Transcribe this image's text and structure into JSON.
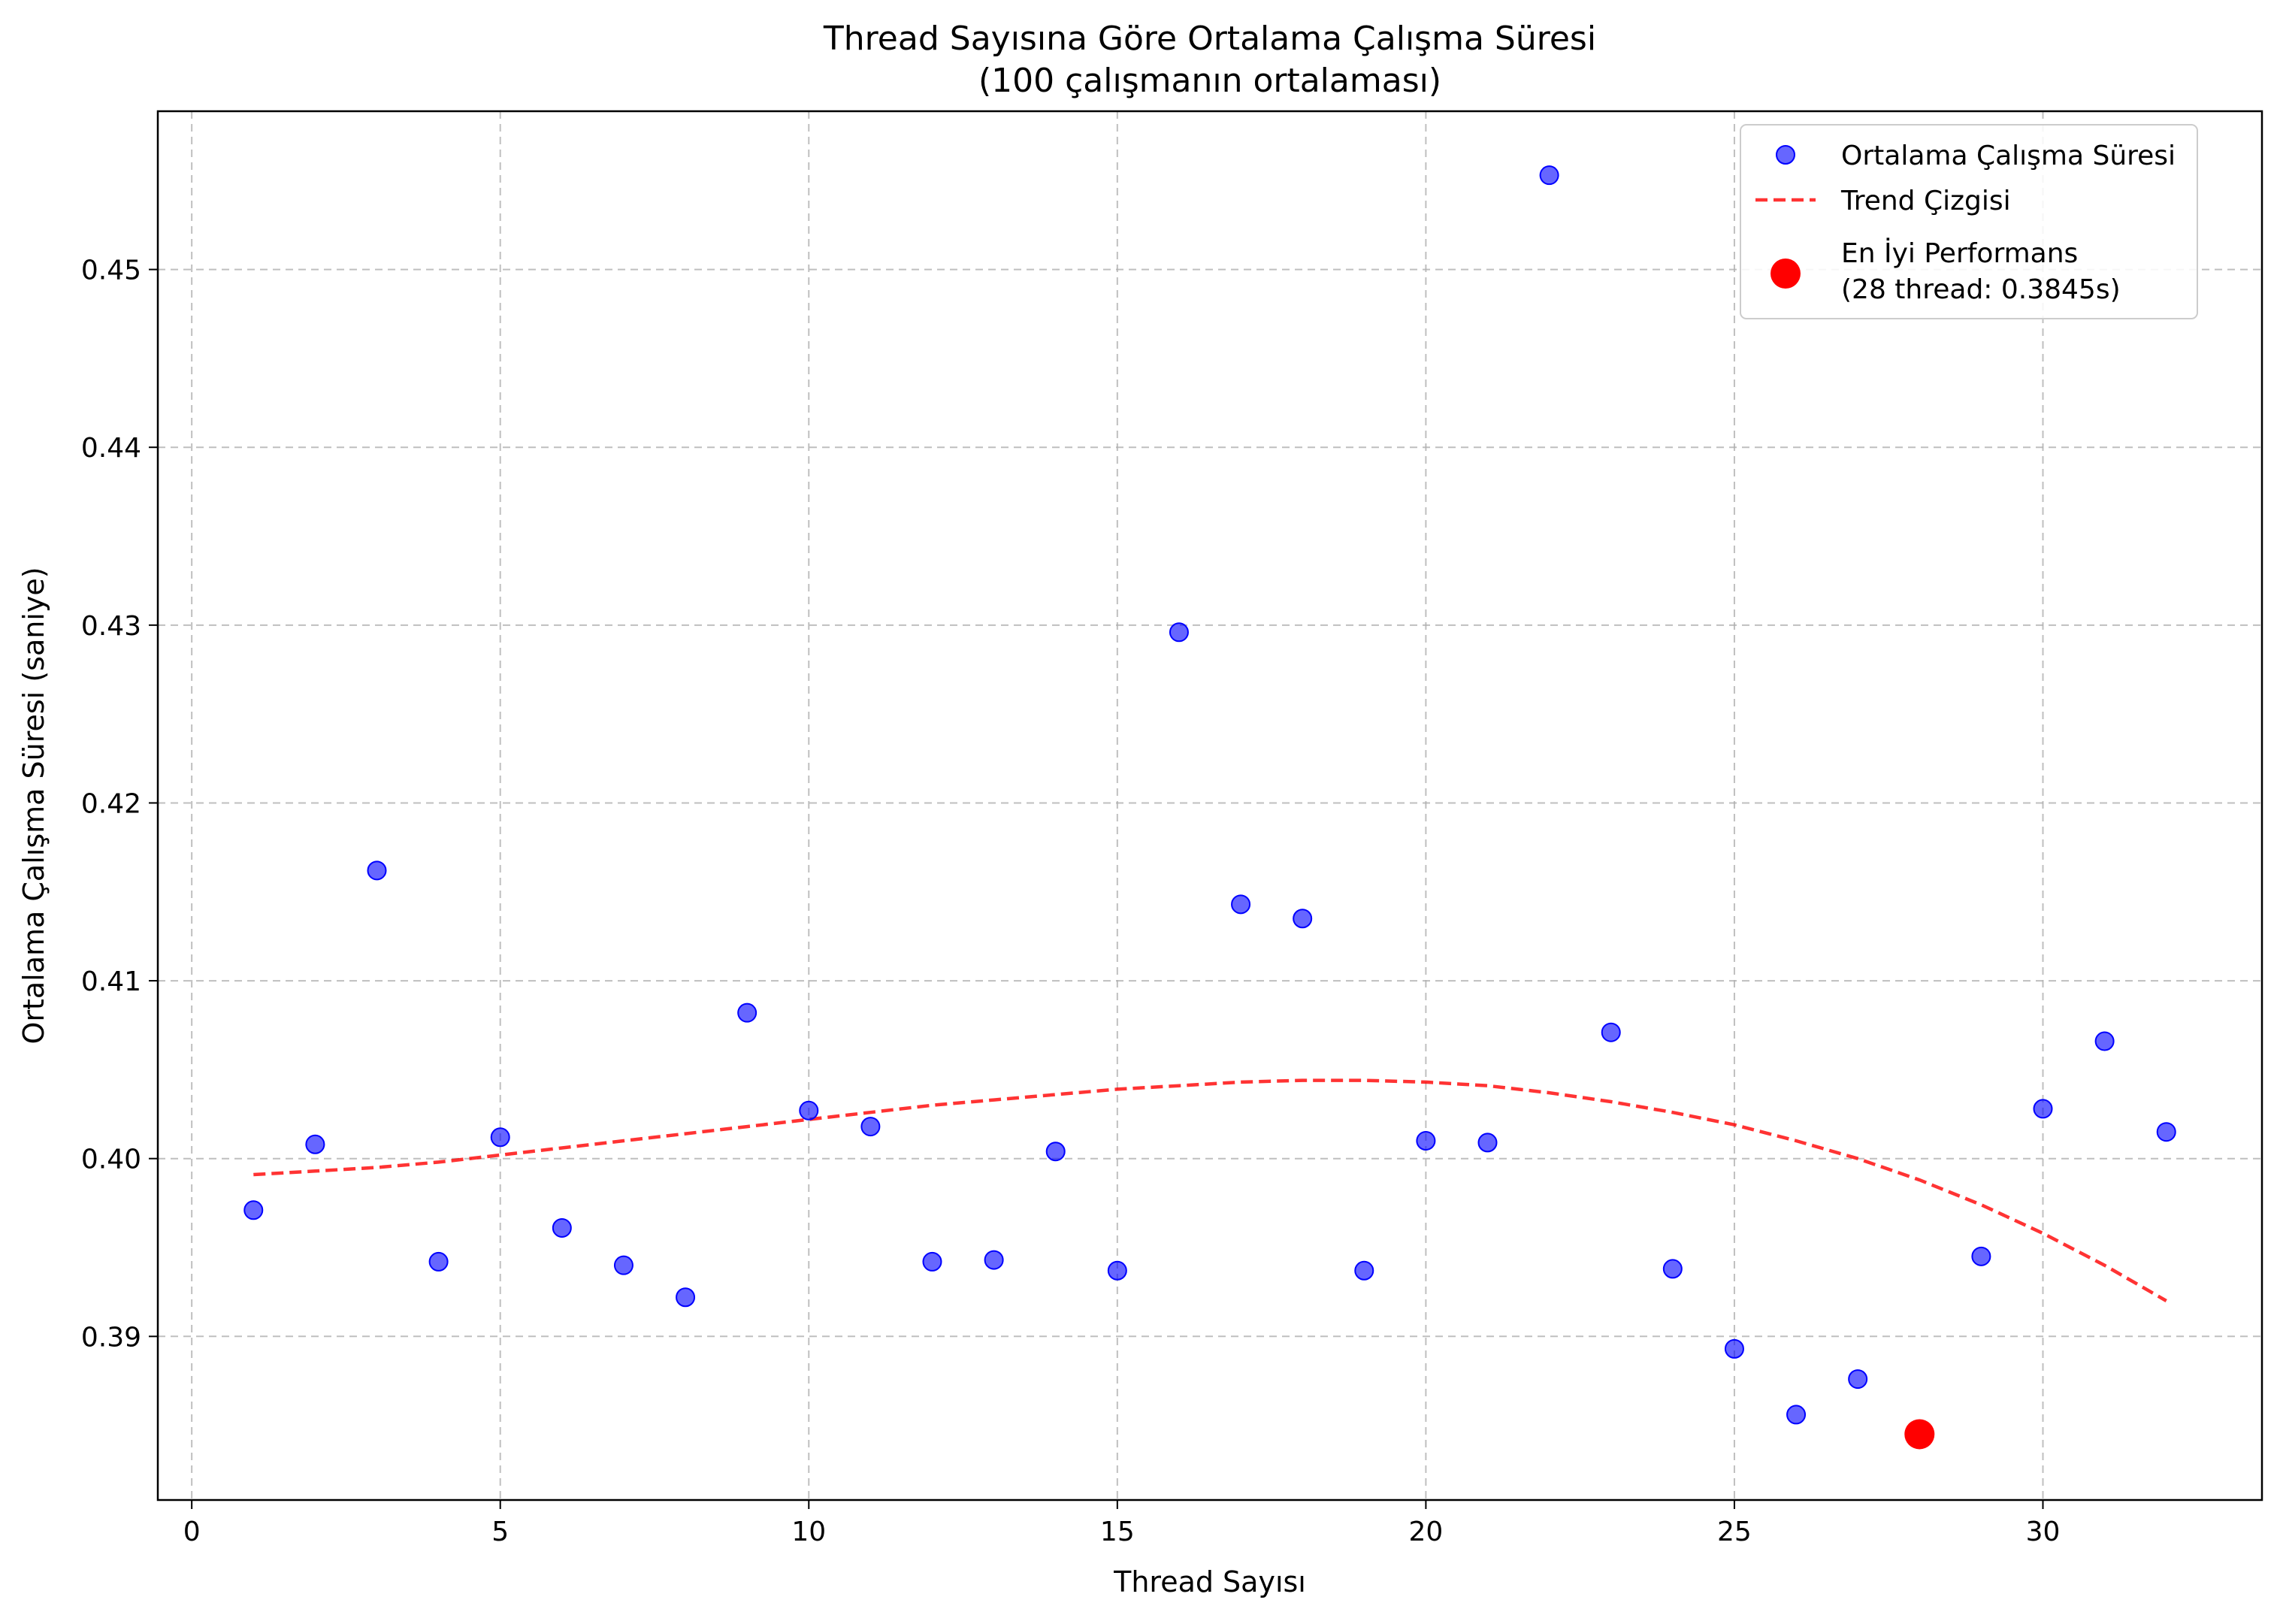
{
  "chart_data": {
    "type": "scatter",
    "title": "Thread Sayısına Göre Ortalama Çalışma Süresi",
    "subtitle": "(100 çalışmanın ortalaması)",
    "xlabel": "Thread Sayısı",
    "ylabel": "Ortalama Çalışma Süresi (saniye)",
    "xlim": [
      -0.55,
      33.55
    ],
    "ylim": [
      0.3808,
      0.4589
    ],
    "x_ticks": [
      0,
      5,
      10,
      15,
      20,
      25,
      30
    ],
    "x_tick_labels": [
      "0",
      "5",
      "10",
      "15",
      "20",
      "25",
      "30"
    ],
    "y_ticks": [
      0.39,
      0.4,
      0.41,
      0.42,
      0.43,
      0.44,
      0.45
    ],
    "y_tick_labels": [
      "0.39",
      "0.40",
      "0.41",
      "0.42",
      "0.43",
      "0.44",
      "0.45"
    ],
    "grid": true,
    "legend_position": "top-right",
    "series": [
      {
        "name": "Ortalama Çalışma Süresi",
        "kind": "scatter",
        "color": "#0000ff",
        "x": [
          1,
          2,
          3,
          4,
          5,
          6,
          7,
          8,
          9,
          10,
          11,
          12,
          13,
          14,
          15,
          16,
          17,
          18,
          19,
          20,
          21,
          22,
          23,
          24,
          25,
          26,
          27,
          29,
          30,
          31,
          32
        ],
        "y": [
          0.3971,
          0.4008,
          0.4162,
          0.3942,
          0.4012,
          0.3961,
          0.394,
          0.3922,
          0.4082,
          0.4027,
          0.4018,
          0.3942,
          0.3943,
          0.4004,
          0.3937,
          0.4296,
          0.4143,
          0.4135,
          0.3937,
          0.401,
          0.4009,
          0.4553,
          0.4071,
          0.3938,
          0.3893,
          0.3856,
          0.3876,
          0.3945,
          0.4028,
          0.4066,
          0.4015
        ]
      },
      {
        "name": "Trend Çizgisi",
        "kind": "line",
        "style": "dashed",
        "color": "#ff0000",
        "x": [
          1,
          2,
          3,
          4,
          5,
          6,
          7,
          8,
          9,
          10,
          11,
          12,
          13,
          14,
          15,
          16,
          17,
          18,
          19,
          20,
          21,
          22,
          23,
          24,
          25,
          26,
          27,
          28,
          29,
          30,
          31,
          32
        ],
        "y": [
          0.3991,
          0.3993,
          0.3995,
          0.3998,
          0.4002,
          0.4006,
          0.401,
          0.4014,
          0.4018,
          0.4022,
          0.4026,
          0.403,
          0.4033,
          0.4036,
          0.4039,
          0.4041,
          0.4043,
          0.4044,
          0.4044,
          0.4043,
          0.4041,
          0.4037,
          0.4032,
          0.4026,
          0.4019,
          0.401,
          0.4,
          0.3988,
          0.3974,
          0.3958,
          0.394,
          0.392
        ]
      },
      {
        "name": "En İyi Performans\n(28 thread: 0.3845s)",
        "kind": "highlight",
        "color": "#ff0000",
        "x": [
          28
        ],
        "y": [
          0.3845
        ]
      }
    ],
    "legend": {
      "scatter_label": "Ortalama Çalışma Süresi",
      "trend_label": "Trend Çizgisi",
      "best_label_line1": "En İyi Performans",
      "best_label_line2": "(28 thread: 0.3845s)"
    }
  }
}
